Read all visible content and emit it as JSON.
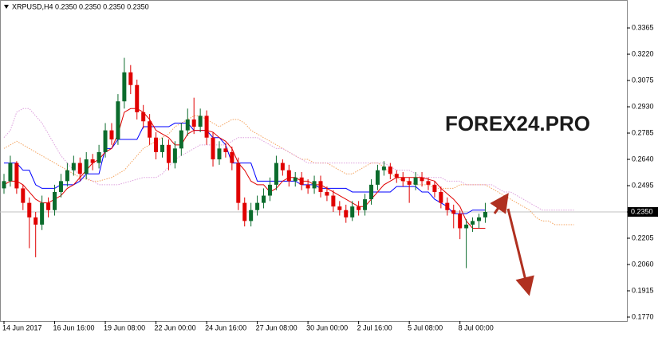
{
  "chart_data": {
    "type": "candlestick",
    "title": "XRPUSD,H4  0.2350 0.2350 0.2350 0.2350",
    "watermark": "FOREX24.PRO",
    "categories": [
      "14 Jun 2017",
      null,
      null,
      null,
      null,
      null,
      null,
      null,
      "16 Jun 16:00",
      null,
      null,
      null,
      null,
      null,
      null,
      null,
      "19 Jun 08:00",
      null,
      null,
      null,
      null,
      null,
      null,
      null,
      "22 Jun 00:00",
      null,
      null,
      null,
      null,
      null,
      null,
      null,
      "24 Jun 16:00",
      null,
      null,
      null,
      null,
      null,
      null,
      null,
      "27 Jun 08:00",
      null,
      null,
      null,
      null,
      null,
      null,
      null,
      "30 Jun 00:00",
      null,
      null,
      null,
      null,
      null,
      null,
      null,
      "2 Jul 16:00",
      null,
      null,
      null,
      null,
      null,
      null,
      null,
      "5 Jul 08:00",
      null,
      null,
      null,
      null,
      null,
      null,
      null,
      "8 Jul 00:00",
      null,
      null,
      null,
      null,
      null,
      null,
      null,
      null,
      null,
      null,
      null,
      null,
      null,
      null,
      null,
      null,
      null,
      null
    ],
    "open": [
      0.248,
      0.252,
      0.262,
      0.248,
      0.24,
      0.232,
      0.228,
      0.24,
      0.236,
      0.246,
      0.252,
      0.258,
      0.262,
      0.256,
      0.264,
      0.262,
      0.268,
      0.28,
      0.275,
      0.296,
      0.312,
      0.305,
      0.29,
      0.285,
      0.276,
      0.268,
      0.272,
      0.262,
      0.27,
      0.28,
      0.286,
      0.282,
      0.288,
      0.276,
      0.264,
      0.27,
      0.268,
      0.262,
      0.24,
      0.23,
      0.236,
      0.24,
      0.244,
      0.25,
      0.262,
      0.258,
      0.252,
      0.254,
      0.25,
      0.248,
      0.252,
      0.246,
      0.244,
      0.238,
      0.236,
      0.232,
      0.238,
      0.236,
      0.242,
      0.25,
      0.258,
      0.26,
      0.256,
      0.254,
      0.252,
      0.25,
      0.254,
      0.252,
      0.25,
      0.246,
      0.24,
      0.236,
      0.234,
      0.226,
      0.228,
      0.23,
      0.232,
      null,
      null,
      null,
      null,
      null,
      null,
      null,
      null,
      null,
      null,
      null,
      null,
      null,
      null
    ],
    "high": [
      0.256,
      0.266,
      0.263,
      0.25,
      0.243,
      0.235,
      0.244,
      0.243,
      0.25,
      0.256,
      0.262,
      0.266,
      0.265,
      0.268,
      0.267,
      0.272,
      0.284,
      0.284,
      0.3,
      0.32,
      0.316,
      0.308,
      0.294,
      0.289,
      0.279,
      0.276,
      0.275,
      0.274,
      0.284,
      0.292,
      0.298,
      0.292,
      0.291,
      0.279,
      0.274,
      0.273,
      0.271,
      0.265,
      0.243,
      0.24,
      0.244,
      0.248,
      0.254,
      0.266,
      0.264,
      0.261,
      0.257,
      0.257,
      0.253,
      0.255,
      0.255,
      0.249,
      0.247,
      0.241,
      0.239,
      0.241,
      0.241,
      0.245,
      0.253,
      0.261,
      0.263,
      0.262,
      0.258,
      0.257,
      0.254,
      0.257,
      0.257,
      0.254,
      0.252,
      0.249,
      0.243,
      0.239,
      0.236,
      0.231,
      0.232,
      0.234,
      0.24,
      null,
      null,
      null,
      null,
      null,
      null,
      null,
      null,
      null,
      null,
      null,
      null,
      null,
      null
    ],
    "low": [
      0.245,
      0.249,
      0.245,
      0.236,
      0.215,
      0.21,
      0.225,
      0.232,
      0.233,
      0.243,
      0.249,
      0.255,
      0.252,
      0.253,
      0.258,
      0.259,
      0.265,
      0.272,
      0.272,
      0.292,
      0.3,
      0.286,
      0.281,
      0.272,
      0.264,
      0.265,
      0.258,
      0.259,
      0.266,
      0.277,
      0.278,
      0.279,
      0.272,
      0.26,
      0.261,
      0.265,
      0.258,
      0.236,
      0.227,
      0.227,
      0.233,
      0.237,
      0.241,
      0.247,
      0.255,
      0.249,
      0.249,
      0.247,
      0.245,
      0.245,
      0.243,
      0.241,
      0.235,
      0.233,
      0.229,
      0.23,
      0.233,
      0.233,
      0.239,
      0.247,
      0.255,
      0.253,
      0.251,
      0.249,
      0.24,
      0.247,
      0.249,
      0.247,
      0.243,
      0.237,
      0.233,
      0.226,
      0.22,
      0.204,
      0.224,
      0.226,
      0.229,
      null,
      null,
      null,
      null,
      null,
      null,
      null,
      null,
      null,
      null,
      null,
      null,
      null,
      null
    ],
    "close": [
      0.252,
      0.262,
      0.248,
      0.24,
      0.232,
      0.228,
      0.24,
      0.236,
      0.246,
      0.252,
      0.258,
      0.262,
      0.256,
      0.264,
      0.262,
      0.268,
      0.28,
      0.275,
      0.296,
      0.312,
      0.305,
      0.29,
      0.285,
      0.276,
      0.268,
      0.272,
      0.262,
      0.27,
      0.28,
      0.286,
      0.282,
      0.288,
      0.276,
      0.264,
      0.27,
      0.268,
      0.262,
      0.24,
      0.23,
      0.236,
      0.24,
      0.244,
      0.25,
      0.262,
      0.258,
      0.252,
      0.254,
      0.25,
      0.248,
      0.252,
      0.246,
      0.244,
      0.238,
      0.236,
      0.232,
      0.238,
      0.236,
      0.242,
      0.25,
      0.258,
      0.26,
      0.256,
      0.254,
      0.252,
      0.25,
      0.254,
      0.252,
      0.25,
      0.246,
      0.24,
      0.236,
      0.234,
      0.226,
      0.228,
      0.23,
      0.232,
      0.235,
      null,
      null,
      null,
      null,
      null,
      null,
      null,
      null,
      null,
      null,
      null,
      null,
      null,
      null
    ],
    "up_color": "#0b6b2c",
    "down_color": "#e00000",
    "series": [
      {
        "color": "#f4a460",
        "dash": true,
        "values": [
          0.27,
          0.272,
          0.274,
          0.272,
          0.27,
          0.268,
          0.266,
          0.264,
          0.262,
          0.26,
          0.258,
          0.256,
          0.254,
          0.253,
          0.252,
          0.252,
          0.253,
          0.254,
          0.256,
          0.258,
          0.262,
          0.266,
          0.27,
          0.272,
          0.274,
          0.276,
          0.278,
          0.282,
          0.284,
          0.286,
          0.288,
          0.288,
          0.286,
          0.284,
          0.282,
          0.284,
          0.286,
          0.286,
          0.284,
          0.28,
          0.278,
          0.276,
          0.274,
          0.272,
          0.27,
          0.268,
          0.266,
          0.264,
          0.264,
          0.262,
          0.262,
          0.262,
          0.26,
          0.258,
          0.256,
          0.256,
          0.258,
          0.26,
          0.262,
          0.262,
          0.26,
          0.256,
          0.254,
          0.252,
          0.252,
          0.25,
          0.25,
          0.25,
          0.248,
          0.248,
          0.248,
          0.248,
          0.25,
          0.25,
          0.25,
          0.25,
          0.25,
          0.248,
          0.246,
          0.244,
          0.242,
          0.24,
          0.238,
          0.236,
          0.232,
          0.23,
          0.23,
          0.228,
          0.228,
          0.228,
          0.228
        ]
      },
      {
        "color": "#dda0dd",
        "dash": true,
        "values": [
          0.276,
          0.28,
          0.29,
          0.292,
          0.292,
          0.288,
          0.284,
          0.278,
          0.272,
          0.266,
          0.262,
          0.258,
          0.256,
          0.254,
          0.252,
          0.25,
          0.25,
          0.25,
          0.25,
          0.251,
          0.252,
          0.253,
          0.254,
          0.254,
          0.254,
          0.256,
          0.26,
          0.264,
          0.266,
          0.268,
          0.27,
          0.272,
          0.272,
          0.272,
          0.272,
          0.272,
          0.274,
          0.276,
          0.276,
          0.276,
          0.276,
          0.274,
          0.272,
          0.27,
          0.27,
          0.268,
          0.266,
          0.264,
          0.262,
          0.262,
          0.262,
          0.262,
          0.262,
          0.262,
          0.262,
          0.262,
          0.262,
          0.262,
          0.262,
          0.262,
          0.262,
          0.26,
          0.258,
          0.258,
          0.258,
          0.256,
          0.254,
          0.254,
          0.254,
          0.254,
          0.252,
          0.252,
          0.252,
          0.25,
          0.25,
          0.25,
          0.25,
          0.25,
          0.248,
          0.246,
          0.246,
          0.244,
          0.242,
          0.24,
          0.238,
          0.236,
          0.236,
          0.236,
          0.236,
          0.236,
          0.236
        ]
      },
      {
        "color": "#0000ff",
        "dash": false,
        "values": [
          0.262,
          0.262,
          0.262,
          0.258,
          0.258,
          0.25,
          0.248,
          0.248,
          0.248,
          0.25,
          0.25,
          0.25,
          0.252,
          0.256,
          0.256,
          0.256,
          0.27,
          0.27,
          0.275,
          0.275,
          0.275,
          0.275,
          0.282,
          0.282,
          0.282,
          0.282,
          0.282,
          0.284,
          0.284,
          0.284,
          0.28,
          0.28,
          0.28,
          0.276,
          0.276,
          0.272,
          0.262,
          0.262,
          0.262,
          0.262,
          0.252,
          0.252,
          0.252,
          0.252,
          0.252,
          0.252,
          0.252,
          0.25,
          0.25,
          0.25,
          0.248,
          0.248,
          0.248,
          0.248,
          0.248,
          0.246,
          0.246,
          0.246,
          0.246,
          0.246,
          0.246,
          0.246,
          0.249,
          0.249,
          0.249,
          0.249,
          0.246,
          0.246,
          0.242,
          0.24,
          0.238,
          0.234,
          0.234,
          0.234,
          0.236,
          0.236,
          0.236,
          null,
          null,
          null,
          null,
          null,
          null,
          null,
          null,
          null,
          null,
          null,
          null,
          null,
          null
        ]
      },
      {
        "color": "#e00000",
        "dash": false,
        "values": [
          0.25,
          0.252,
          0.252,
          0.25,
          0.246,
          0.242,
          0.24,
          0.24,
          0.242,
          0.244,
          0.248,
          0.25,
          0.254,
          0.258,
          0.262,
          0.264,
          0.268,
          0.27,
          0.278,
          0.29,
          0.292,
          0.292,
          0.29,
          0.286,
          0.28,
          0.278,
          0.276,
          0.272,
          0.272,
          0.278,
          0.28,
          0.28,
          0.28,
          0.279,
          0.276,
          0.274,
          0.27,
          0.262,
          0.258,
          0.252,
          0.25,
          0.25,
          0.246,
          0.248,
          0.252,
          0.254,
          0.254,
          0.252,
          0.252,
          0.25,
          0.25,
          0.248,
          0.246,
          0.244,
          0.242,
          0.24,
          0.238,
          0.238,
          0.242,
          0.246,
          0.25,
          0.252,
          0.254,
          0.254,
          0.254,
          0.254,
          0.254,
          0.253,
          0.252,
          0.248,
          0.245,
          0.242,
          0.238,
          0.23,
          0.226,
          0.226,
          0.226,
          null,
          null,
          null,
          null,
          null,
          null,
          null,
          null,
          null,
          null,
          null,
          null,
          null,
          null
        ]
      }
    ],
    "last_price": {
      "value": 0.235,
      "label": "0.2350"
    },
    "ylim": [
      0.1748,
      0.3519
    ],
    "yticks": [
      0.3365,
      {
        "value": 0.322,
        "label": "0.3220"
      },
      0.3075,
      {
        "value": 0.293,
        "label": "0.2930"
      },
      0.2785,
      {
        "value": 0.264,
        "label": "0.2640"
      },
      0.2495,
      {
        "value": 0.235,
        "label": "0.2350"
      },
      0.2205,
      {
        "value": 0.206,
        "label": "0.2060"
      },
      0.1915,
      {
        "value": 0.177,
        "label": "0.1770"
      }
    ],
    "grid": false
  }
}
